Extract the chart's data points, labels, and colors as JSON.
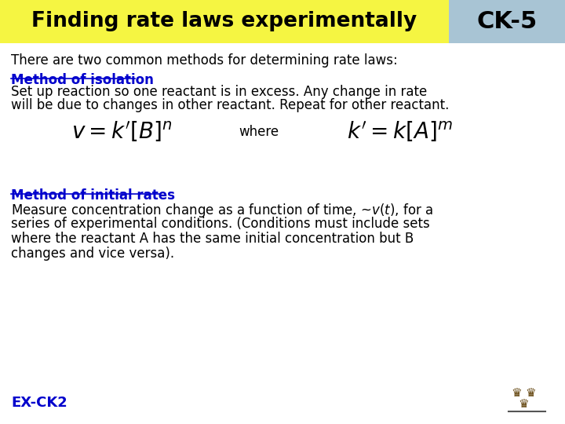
{
  "title": "Finding rate laws experimentally",
  "ck_label": "CK-5",
  "title_bg": "#f5f542",
  "ck_bg": "#a8c4d4",
  "slide_bg": "#ffffff",
  "intro_text": "There are two common methods for determining rate laws:",
  "method1_heading": "Method of isolation",
  "method1_line1": "Set up reaction so one reactant is in excess. Any change in rate",
  "method1_line2": "will be due to changes in other reactant. Repeat for other reactant.",
  "formula_where": "where",
  "method2_heading": "Method of initial rates",
  "method2_line1": "Measure concentration change as a function of time, ~v(t), for a",
  "method2_line2": "series of experimental conditions. (Conditions must include sets",
  "method2_line3": "where the reactant A has the same initial concentration but B",
  "method2_line4": "changes and vice versa).",
  "footer": "EX-CK2",
  "heading_color": "#0000cc",
  "text_color": "#000000",
  "footer_color": "#0000cc"
}
